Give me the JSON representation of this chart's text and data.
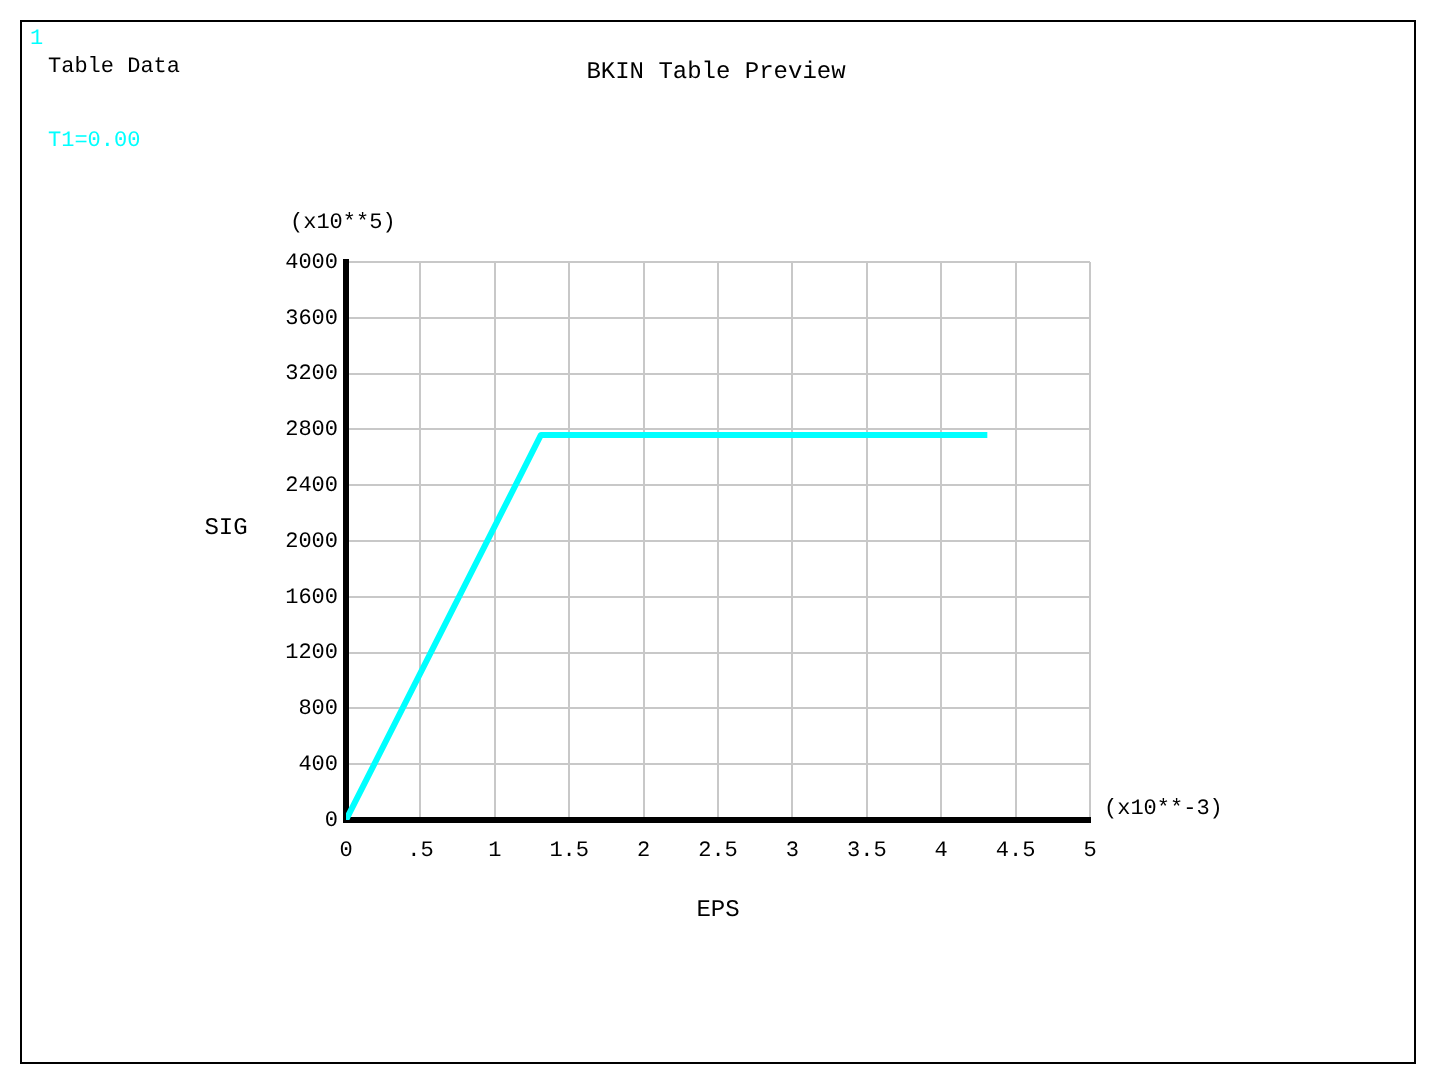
{
  "chart_data": {
    "type": "line",
    "title": "BKIN Table Preview",
    "xlabel": "EPS",
    "ylabel": "SIG",
    "annotations": [
      "1",
      "Table Data",
      "T1=0.00",
      "(x10**5)",
      "(x10**-3)"
    ],
    "x": [
      0,
      1.31,
      4.31
    ],
    "series": [
      {
        "color": "#00ffff",
        "values": [
          0,
          2760,
          2760
        ]
      }
    ],
    "xlim": [
      0,
      5
    ],
    "xticks": [
      0,
      {
        "value": 0.5,
        "label": ".5"
      },
      1,
      {
        "value": 1.5,
        "label": "1.5"
      },
      2,
      {
        "value": 2.5,
        "label": "2.5"
      },
      3,
      {
        "value": 3.5,
        "label": "3.5"
      },
      4,
      {
        "value": 4.5,
        "label": "4.5"
      },
      5
    ],
    "ylim": [
      0,
      4000
    ],
    "yticks": [
      0,
      400,
      800,
      1200,
      1600,
      2000,
      2400,
      2800,
      3200,
      3600,
      4000
    ],
    "grid": true,
    "legend": false,
    "marker": "none",
    "line_style": "solid"
  }
}
